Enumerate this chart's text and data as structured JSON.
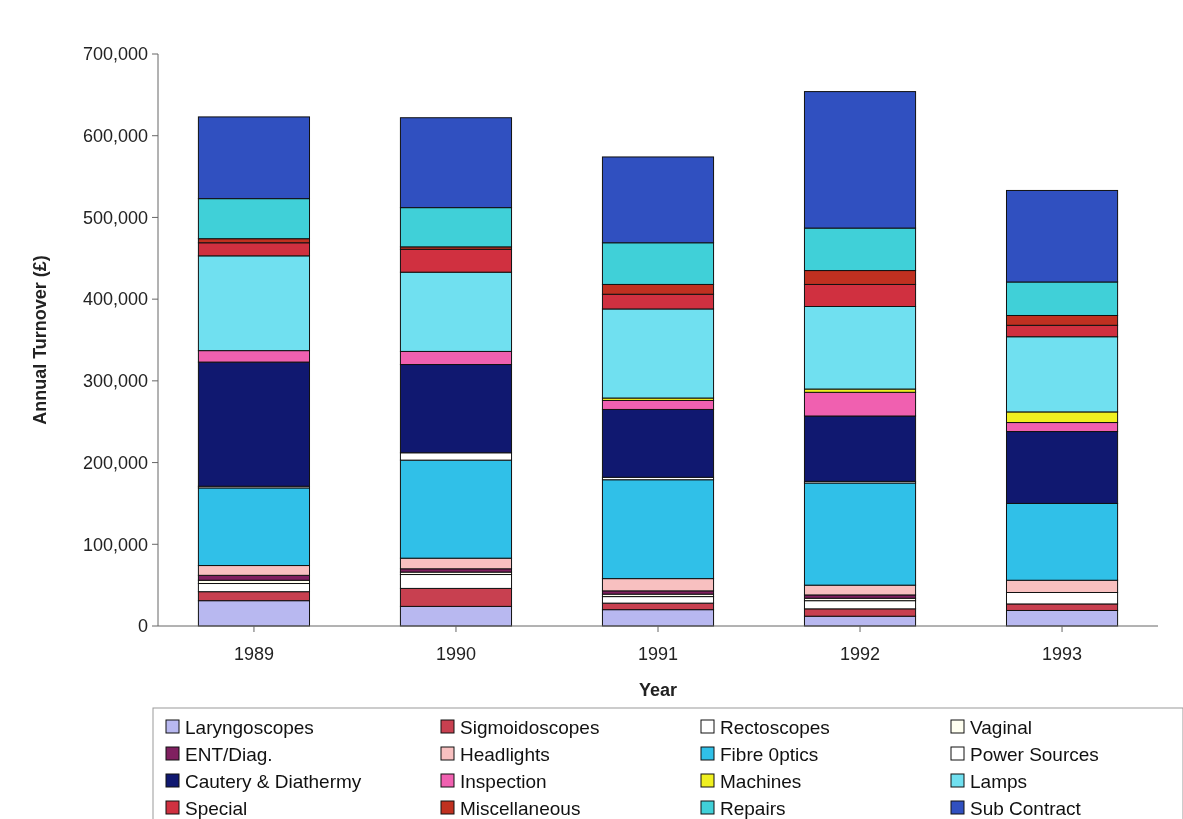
{
  "chart_data": {
    "type": "bar",
    "stacked": true,
    "xlabel": "Year",
    "ylabel": "Annual Turnover (£)",
    "categories": [
      "1989",
      "1990",
      "1991",
      "1992",
      "1993"
    ],
    "ylim": [
      0,
      700000
    ],
    "yticks": [
      0,
      {
        "value": 100000,
        "label": "100,000"
      },
      {
        "value": 200000,
        "label": "200,000"
      },
      {
        "value": 300000,
        "label": "300,000"
      },
      {
        "value": 400000,
        "label": "400,000"
      },
      {
        "value": 500000,
        "label": "500,000"
      },
      {
        "value": 600000,
        "label": "600,000"
      },
      {
        "value": 700000,
        "label": "700,000"
      }
    ],
    "grid": false,
    "legend": "bottom",
    "series": [
      {
        "name": "Laryngoscopes",
        "color": "#b8b8f0",
        "values": [
          31000,
          24000,
          20000,
          12000,
          19000
        ]
      },
      {
        "name": "Sigmoidoscopes",
        "color": "#c84050",
        "values": [
          11000,
          22000,
          8000,
          9000,
          8000
        ]
      },
      {
        "name": "Rectoscopes",
        "color": "#ffffff",
        "values": [
          10000,
          17000,
          8000,
          10000,
          14000
        ]
      },
      {
        "name": "Vaginal",
        "color": "#fffff0",
        "values": [
          4000,
          3000,
          3000,
          3000,
          null
        ]
      },
      {
        "name": "ENT/Diag.",
        "color": "#802060",
        "values": [
          6000,
          4000,
          4000,
          4000,
          null
        ]
      },
      {
        "name": "Headlights",
        "color": "#f8c0c0",
        "values": [
          12000,
          13000,
          15000,
          12000,
          15000
        ]
      },
      {
        "name": "Fibre 0ptics",
        "color": "#30c0e8",
        "values": [
          95000,
          120000,
          121000,
          125000,
          94000
        ]
      },
      {
        "name": "Power Sources",
        "color": "#ffffff",
        "values": [
          2000,
          9000,
          3000,
          2000,
          null
        ]
      },
      {
        "name": "Cautery & Diathermy",
        "color": "#101870",
        "values": [
          152000,
          108000,
          83000,
          80000,
          88000
        ]
      },
      {
        "name": "Inspection",
        "color": "#f060b0",
        "values": [
          14000,
          16000,
          11000,
          29000,
          11000
        ]
      },
      {
        "name": "Machines",
        "color": "#f0f020",
        "values": [
          0,
          0,
          3000,
          4000,
          13000
        ]
      },
      {
        "name": "Lamps",
        "color": "#70e0f0",
        "values": [
          116000,
          97000,
          109000,
          101000,
          92000
        ]
      },
      {
        "name": "Special",
        "color": "#d03040",
        "values": [
          16000,
          28000,
          18000,
          27000,
          14000
        ]
      },
      {
        "name": "Miscellaneous",
        "color": "#c03020",
        "values": [
          5000,
          3000,
          12000,
          17000,
          12000
        ]
      },
      {
        "name": "Repairs",
        "color": "#40d0d8",
        "values": [
          49000,
          48000,
          51000,
          52000,
          41000
        ]
      },
      {
        "name": "Sub Contract",
        "color": "#3050c0",
        "values": [
          100000,
          110000,
          105000,
          167000,
          112000
        ]
      }
    ]
  }
}
